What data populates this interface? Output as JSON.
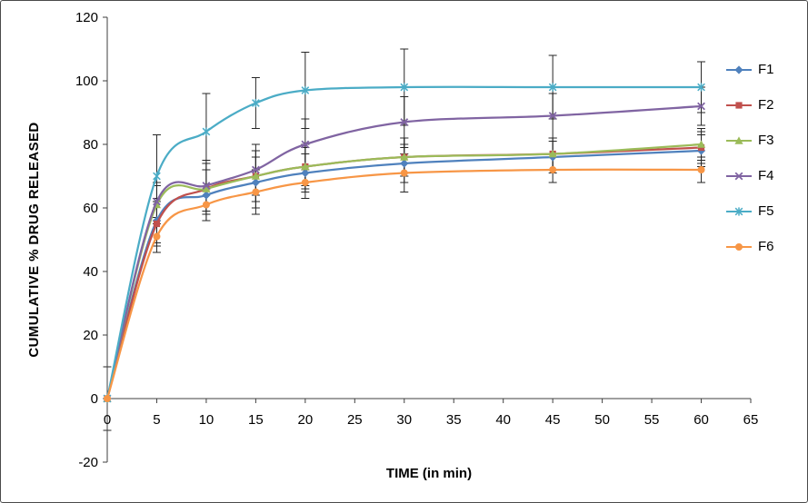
{
  "chart_data": {
    "type": "line",
    "title": "",
    "xlabel": "TIME (in min)",
    "ylabel": "CUMULATIVE % DRUG RELEASED",
    "xlim": [
      0,
      65
    ],
    "ylim": [
      -20,
      120
    ],
    "xticks": [
      0,
      5,
      10,
      15,
      20,
      25,
      30,
      35,
      40,
      45,
      50,
      55,
      60,
      65
    ],
    "yticks": [
      -20,
      0,
      20,
      40,
      60,
      80,
      100,
      120
    ],
    "grid": false,
    "legend_position": "right",
    "error_bars": true,
    "x": [
      0,
      5,
      10,
      15,
      20,
      30,
      45,
      60
    ],
    "series": [
      {
        "name": "F1",
        "color": "#4F81BD",
        "marker": "diamond",
        "values": [
          0,
          56,
          64,
          68,
          71,
          74,
          76,
          78
        ],
        "errors": [
          10,
          7,
          8,
          8,
          6,
          6,
          5,
          5
        ]
      },
      {
        "name": "F2",
        "color": "#C0504D",
        "marker": "square",
        "values": [
          0,
          55,
          66,
          70,
          73,
          76,
          77,
          79
        ],
        "errors": [
          10,
          7,
          8,
          8,
          6,
          6,
          5,
          5
        ]
      },
      {
        "name": "F3",
        "color": "#9BBB59",
        "marker": "triangle",
        "values": [
          0,
          61,
          66,
          70,
          73,
          76,
          77,
          80
        ],
        "errors": [
          10,
          6,
          8,
          8,
          7,
          6,
          5,
          5
        ]
      },
      {
        "name": "F4",
        "color": "#8064A2",
        "marker": "x",
        "values": [
          0,
          62,
          67,
          72,
          80,
          87,
          89,
          92
        ],
        "errors": [
          10,
          6,
          8,
          8,
          8,
          8,
          7,
          6
        ]
      },
      {
        "name": "F5",
        "color": "#4BACC6",
        "marker": "asterisk",
        "values": [
          0,
          70,
          84,
          93,
          97,
          98,
          98,
          98
        ],
        "errors": [
          10,
          13,
          12,
          8,
          12,
          12,
          10,
          8
        ]
      },
      {
        "name": "F6",
        "color": "#F79646",
        "marker": "circle",
        "values": [
          0,
          51,
          61,
          65,
          68,
          71,
          72,
          72
        ],
        "errors": [
          10,
          5,
          5,
          7,
          5,
          6,
          4,
          4
        ]
      }
    ]
  }
}
